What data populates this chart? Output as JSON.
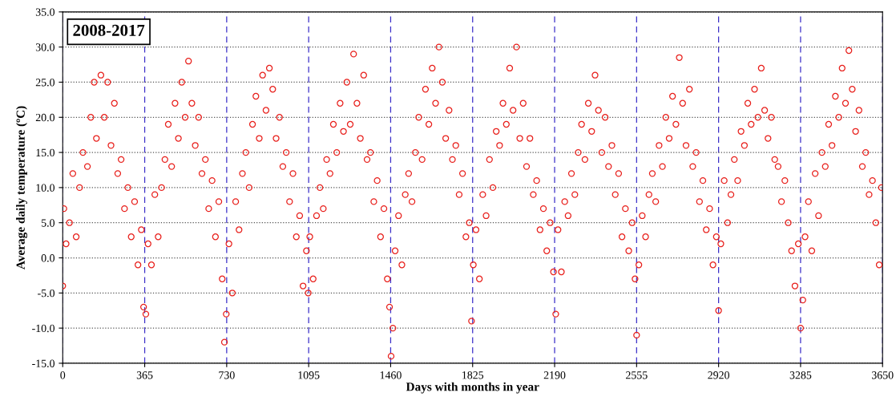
{
  "chart_data": {
    "type": "scatter",
    "xlabel": "Days with months in year",
    "ylabel": "Average daily temperature (ºC)",
    "annotations": [
      "2008-2017"
    ],
    "marker": "circle",
    "grid": true,
    "xlim": [
      0,
      3650
    ],
    "xticks": [
      0,
      365,
      730,
      1095,
      1460,
      1825,
      2190,
      2555,
      2920,
      3285,
      3650
    ],
    "ylim": [
      -15,
      35
    ],
    "yticks": [
      {
        "value": -15,
        "label": "-15.0"
      },
      {
        "value": -10,
        "label": "-10.0"
      },
      {
        "value": -5,
        "label": "-5.0"
      },
      {
        "value": 0,
        "label": "0.0"
      },
      {
        "value": 5,
        "label": "5.0"
      },
      {
        "value": 10,
        "label": "10.0"
      },
      {
        "value": 15,
        "label": "15.0"
      },
      {
        "value": 20,
        "label": "20.0"
      },
      {
        "value": 25,
        "label": "25.0"
      },
      {
        "value": 30,
        "label": "30.0"
      },
      {
        "value": 35,
        "label": "35.0"
      }
    ],
    "series": [
      {
        "color": "#e8201c",
        "x": [
          0,
          5,
          15,
          30,
          45,
          60,
          75,
          90,
          110,
          125,
          140,
          150,
          170,
          185,
          200,
          215,
          230,
          245,
          260,
          275,
          290,
          305,
          320,
          335,
          350,
          360,
          370,
          380,
          395,
          410,
          425,
          440,
          455,
          470,
          485,
          500,
          515,
          530,
          545,
          560,
          575,
          590,
          605,
          620,
          635,
          650,
          665,
          680,
          695,
          710,
          720,
          728,
          740,
          755,
          770,
          785,
          800,
          815,
          830,
          845,
          860,
          875,
          890,
          905,
          920,
          935,
          950,
          965,
          980,
          995,
          1010,
          1025,
          1040,
          1055,
          1070,
          1085,
          1093,
          1100,
          1115,
          1130,
          1145,
          1160,
          1175,
          1190,
          1205,
          1220,
          1235,
          1250,
          1265,
          1280,
          1295,
          1310,
          1325,
          1340,
          1355,
          1370,
          1385,
          1400,
          1415,
          1430,
          1445,
          1455,
          1462,
          1470,
          1480,
          1495,
          1510,
          1525,
          1540,
          1555,
          1570,
          1585,
          1600,
          1615,
          1630,
          1645,
          1660,
          1675,
          1690,
          1705,
          1720,
          1735,
          1750,
          1765,
          1780,
          1795,
          1810,
          1820,
          1828,
          1840,
          1855,
          1870,
          1885,
          1900,
          1915,
          1930,
          1945,
          1960,
          1975,
          1990,
          2005,
          2020,
          2035,
          2050,
          2065,
          2080,
          2095,
          2110,
          2125,
          2140,
          2155,
          2170,
          2185,
          2195,
          2205,
          2220,
          2235,
          2250,
          2265,
          2280,
          2295,
          2310,
          2325,
          2340,
          2355,
          2370,
          2385,
          2400,
          2415,
          2430,
          2445,
          2460,
          2475,
          2490,
          2505,
          2520,
          2535,
          2548,
          2555,
          2565,
          2580,
          2595,
          2610,
          2625,
          2640,
          2655,
          2670,
          2685,
          2700,
          2715,
          2730,
          2745,
          2760,
          2775,
          2790,
          2805,
          2820,
          2835,
          2850,
          2865,
          2880,
          2895,
          2910,
          2920,
          2930,
          2945,
          2960,
          2975,
          2990,
          3005,
          3020,
          3035,
          3050,
          3065,
          3080,
          3095,
          3110,
          3125,
          3140,
          3155,
          3170,
          3185,
          3200,
          3215,
          3230,
          3245,
          3260,
          3275,
          3285,
          3295,
          3305,
          3320,
          3335,
          3350,
          3365,
          3380,
          3395,
          3410,
          3425,
          3440,
          3455,
          3470,
          3485,
          3500,
          3515,
          3530,
          3545,
          3560,
          3575,
          3590,
          3605,
          3620,
          3635,
          3645
        ],
        "values": [
          -4,
          7,
          2,
          5,
          12,
          3,
          10,
          15,
          13,
          20,
          25,
          17,
          26,
          20,
          25,
          16,
          22,
          12,
          14,
          7,
          10,
          3,
          8,
          -1,
          4,
          -7,
          -8,
          2,
          -1,
          9,
          3,
          10,
          14,
          19,
          13,
          22,
          17,
          25,
          20,
          28,
          22,
          16,
          20,
          12,
          14,
          7,
          11,
          3,
          8,
          -3,
          -12,
          -8,
          2,
          -5,
          8,
          4,
          12,
          15,
          10,
          19,
          23,
          17,
          26,
          21,
          27,
          24,
          17,
          20,
          13,
          15,
          8,
          12,
          3,
          6,
          -4,
          1,
          -5,
          3,
          -3,
          6,
          10,
          7,
          14,
          12,
          19,
          15,
          22,
          18,
          25,
          19,
          29,
          22,
          17,
          26,
          14,
          15,
          8,
          11,
          3,
          7,
          -3,
          -7,
          -14,
          -10,
          1,
          6,
          -1,
          9,
          12,
          8,
          15,
          20,
          14,
          24,
          19,
          27,
          22,
          30,
          25,
          17,
          21,
          14,
          16,
          9,
          12,
          3,
          5,
          -9,
          -1,
          4,
          -3,
          9,
          6,
          14,
          10,
          18,
          16,
          22,
          19,
          27,
          21,
          30,
          17,
          22,
          13,
          17,
          9,
          11,
          4,
          7,
          1,
          5,
          -2,
          -8,
          4,
          -2,
          8,
          6,
          12,
          9,
          15,
          19,
          14,
          22,
          18,
          26,
          21,
          15,
          20,
          13,
          16,
          9,
          12,
          3,
          7,
          1,
          5,
          -3,
          -11,
          -1,
          6,
          3,
          9,
          12,
          8,
          16,
          13,
          20,
          17,
          23,
          19,
          28.5,
          22,
          16,
          24,
          13,
          15,
          8,
          11,
          4,
          7,
          -1,
          3,
          -7.5,
          2,
          11,
          5,
          9,
          14,
          11,
          18,
          16,
          22,
          19,
          24,
          20,
          27,
          21,
          17,
          20,
          14,
          13,
          8,
          11,
          5,
          1,
          -4,
          2,
          -10,
          -6,
          3,
          8,
          1,
          12,
          6,
          15,
          13,
          19,
          16,
          23,
          20,
          27,
          22,
          29.5,
          24,
          18,
          21,
          13,
          15,
          9,
          11,
          5,
          -1,
          10
        ]
      }
    ]
  }
}
